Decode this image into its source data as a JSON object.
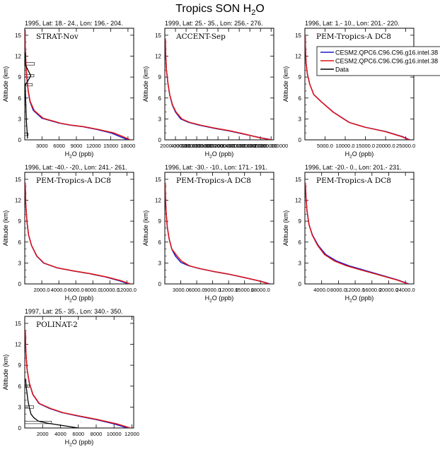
{
  "figure": {
    "title_main": "Tropics SON H",
    "title_sub": "2",
    "title_end": "O",
    "xlabel_main": "H",
    "xlabel_sub": "2",
    "xlabel_end": "O (ppb)",
    "ylabel": "Altitude (km)"
  },
  "legend": {
    "entries": [
      {
        "label": "CESM2.QPC6.C96.C96.g16.intel.38",
        "color": "#1a1acc"
      },
      {
        "label": "CESM2.QPC6.C96.C96.g16.intel.38",
        "color": "#e01414"
      },
      {
        "label": "Data",
        "color": "#000000"
      }
    ]
  },
  "chart_data": [
    {
      "type": "line",
      "header": "1995, Lat: 18.- 24., Lon: 196.- 204.",
      "campaign": "STRAT-Nov",
      "ylim": [
        0,
        16
      ],
      "yticks": [
        0,
        3,
        6,
        9,
        12,
        15
      ],
      "xlim": [
        0,
        19000
      ],
      "xticks": [
        3000,
        6000,
        9000,
        12000,
        15000,
        18000
      ],
      "xtick_labels": [
        "3000",
        "6000",
        "9000",
        "12000",
        "15000",
        "18000"
      ],
      "series": [
        {
          "name": "blue",
          "color": "#1a1acc",
          "x": [
            18000,
            16500,
            15000,
            12500,
            10000,
            8000,
            6000,
            3000,
            1500,
            900,
            600,
            350,
            200,
            120,
            80,
            60
          ],
          "y": [
            0,
            0.5,
            1.0,
            1.5,
            1.9,
            2.1,
            2.4,
            3.1,
            4.2,
            5.5,
            7,
            9,
            11,
            12.5,
            14,
            15.8
          ]
        },
        {
          "name": "red",
          "color": "#e01414",
          "x": [
            18400,
            17000,
            15500,
            12800,
            10200,
            8200,
            6200,
            3200,
            1650,
            950,
            620,
            360,
            205,
            122,
            80,
            60
          ],
          "y": [
            0,
            0.5,
            1.0,
            1.5,
            1.9,
            2.1,
            2.4,
            3.1,
            4.2,
            5.5,
            7,
            9,
            11,
            12.5,
            14,
            15.8
          ]
        },
        {
          "name": "Data",
          "color": "#000000",
          "x": [
            480,
            380,
            300,
            250,
            80,
            1050,
            80,
            100
          ],
          "y": [
            0.2,
            1.5,
            2.5,
            3.5,
            7.8,
            9.2,
            10.8,
            12.5
          ]
        }
      ],
      "error_boxes": [
        {
          "y": 0.8,
          "xmin": 0,
          "xmax": 600
        },
        {
          "y": 7.9,
          "xmin": 0,
          "xmax": 1300
        },
        {
          "y": 9.2,
          "xmin": 0,
          "xmax": 1600
        },
        {
          "y": 10.9,
          "xmin": 0,
          "xmax": 1700
        }
      ]
    },
    {
      "type": "line",
      "header": "1999, Lat: 25.- 35., Lon: 256.- 276.",
      "campaign": "ACCENT-Sep",
      "ylim": [
        0,
        16
      ],
      "yticks": [
        0,
        3,
        6,
        9,
        12,
        15
      ],
      "xlim": [
        0,
        20500
      ],
      "xticks": [
        2000,
        4000,
        6000,
        8000,
        10000,
        12000,
        14000,
        16000,
        18000,
        20000
      ],
      "xtick_labels": [
        "2000.000000",
        "4000.000000",
        "6000.000000",
        "8000.000000",
        "10000.000000",
        "12000.000000",
        "14000.000000",
        "16000.000000",
        "18000.000000",
        "20000.000000"
      ],
      "series": [
        {
          "name": "blue",
          "color": "#1a1acc",
          "x": [
            20200,
            18000,
            15000,
            12000,
            9000,
            6500,
            4500,
            3000,
            2000,
            1400,
            900,
            600,
            300,
            150,
            100
          ],
          "y": [
            0,
            0.3,
            0.8,
            1.3,
            1.7,
            2.1,
            2.5,
            3.0,
            4.0,
            5.0,
            6.5,
            8,
            10,
            12.5,
            14.5
          ]
        },
        {
          "name": "red",
          "color": "#e01414",
          "x": [
            20000,
            17800,
            15200,
            12300,
            9300,
            6800,
            4700,
            3200,
            2100,
            1450,
            920,
            610,
            305,
            150,
            100
          ],
          "y": [
            0,
            0.3,
            0.8,
            1.3,
            1.7,
            2.1,
            2.5,
            3.0,
            4.0,
            5.0,
            6.5,
            8,
            10,
            12.5,
            14.5
          ]
        }
      ]
    },
    {
      "type": "line",
      "header": "1996, Lat: 1.- 10., Lon: 201.- 220.",
      "campaign": "PEM-Tropics-A DC8",
      "ylim": [
        0,
        16
      ],
      "yticks": [
        0,
        3,
        6,
        9,
        12,
        15
      ],
      "xlim": [
        0,
        27000
      ],
      "xticks": [
        5000,
        10000,
        15000,
        20000,
        25000
      ],
      "xtick_labels": [
        "5000.0",
        "10000.0",
        "15000.0",
        "20000.0",
        "25000.0"
      ],
      "series": [
        {
          "name": "blue",
          "color": "#1a1acc",
          "x": [
            26000,
            24000,
            20000,
            15000,
            11000,
            7000,
            4000,
            2200,
            1200,
            600,
            300,
            150,
            80
          ],
          "y": [
            0,
            0.5,
            1.2,
            1.8,
            2.5,
            4.0,
            5.5,
            6.5,
            8,
            9.5,
            11,
            13,
            15
          ]
        },
        {
          "name": "red",
          "color": "#e01414",
          "x": [
            25800,
            23800,
            19800,
            14900,
            10900,
            6950,
            3980,
            2190,
            1195,
            598,
            299,
            150,
            80
          ],
          "y": [
            0,
            0.5,
            1.2,
            1.8,
            2.5,
            4.0,
            5.5,
            6.5,
            8,
            9.5,
            11,
            13,
            15
          ]
        }
      ]
    },
    {
      "type": "line",
      "header": "1996, Lat: -40.- -20., Lon: 241.- 261.",
      "campaign": "PEM-Tropics-A DC8",
      "ylim": [
        0,
        16
      ],
      "yticks": [
        0,
        3,
        6,
        9,
        12,
        15
      ],
      "xlim": [
        0,
        12800
      ],
      "xticks": [
        2000,
        4000,
        6000,
        8000,
        10000,
        12000
      ],
      "xtick_labels": [
        "2000.0",
        "4000.0",
        "6000.0",
        "8000.0",
        "10000.0",
        "12000.0"
      ],
      "series": [
        {
          "name": "blue",
          "color": "#1a1acc",
          "x": [
            12200,
            11000,
            9500,
            7500,
            5500,
            3800,
            2200,
            1400,
            800,
            450,
            250,
            120,
            60
          ],
          "y": [
            0,
            0.5,
            1.0,
            1.5,
            1.9,
            2.3,
            3.0,
            4.0,
            5.5,
            7.0,
            9.0,
            11.5,
            14.5
          ]
        },
        {
          "name": "red",
          "color": "#e01414",
          "x": [
            12400,
            11200,
            9600,
            7600,
            5600,
            3850,
            2250,
            1420,
            810,
            455,
            252,
            120,
            60
          ],
          "y": [
            0,
            0.5,
            1.0,
            1.5,
            1.9,
            2.3,
            3.0,
            4.0,
            5.5,
            7.0,
            9.0,
            11.5,
            14.5
          ]
        }
      ]
    },
    {
      "type": "line",
      "header": "1996, Lat: -30.- -10., Lon: 171.- 191.",
      "campaign": "PEM-Tropics-A DC8",
      "ylim": [
        0,
        16
      ],
      "yticks": [
        0,
        3,
        6,
        9,
        12,
        15
      ],
      "xlim": [
        0,
        20500
      ],
      "xticks": [
        3000,
        6000,
        9000,
        12000,
        15000,
        18000
      ],
      "xtick_labels": [
        "3000.0",
        "6000.0",
        "9000.0",
        "12000.0",
        "15000.0",
        "18000.0"
      ],
      "series": [
        {
          "name": "blue",
          "color": "#1a1acc",
          "x": [
            19800,
            18000,
            15000,
            12000,
            9000,
            6500,
            4500,
            3000,
            2000,
            1300,
            800,
            450,
            220,
            120,
            80
          ],
          "y": [
            0,
            0.4,
            0.9,
            1.4,
            1.8,
            2.2,
            2.6,
            3.1,
            4.0,
            5.0,
            6.5,
            8.2,
            10.5,
            12.5,
            14.5
          ]
        },
        {
          "name": "red",
          "color": "#e01414",
          "x": [
            19600,
            17900,
            15100,
            12100,
            9100,
            6600,
            4600,
            3100,
            2100,
            1320,
            810,
            455,
            222,
            121,
            80
          ],
          "y": [
            0,
            0.4,
            0.9,
            1.4,
            1.8,
            2.2,
            2.6,
            3.3,
            4.2,
            5.0,
            6.5,
            8.2,
            10.5,
            12.5,
            14.5
          ]
        }
      ]
    },
    {
      "type": "line",
      "header": "1996, Lat: -20.- 0., Lon: 201.- 231.",
      "campaign": "PEM-Tropics-A DC8",
      "ylim": [
        0,
        16
      ],
      "yticks": [
        0,
        3,
        6,
        9,
        12,
        15
      ],
      "xlim": [
        0,
        26000
      ],
      "xticks": [
        4000,
        8000,
        12000,
        16000,
        20000,
        24000
      ],
      "xtick_labels": [
        "4000.0",
        "8000.0",
        "12000.0",
        "16000.0",
        "20000.0",
        "24000.0"
      ],
      "series": [
        {
          "name": "blue",
          "color": "#1a1acc",
          "x": [
            24800,
            22000,
            18000,
            14000,
            10500,
            7500,
            5000,
            3200,
            1800,
            1000,
            500,
            250,
            120
          ],
          "y": [
            0,
            0.6,
            1.3,
            2.0,
            2.6,
            3.3,
            4.2,
            5.5,
            7.0,
            8.5,
            10.5,
            12.5,
            14.5
          ]
        },
        {
          "name": "red",
          "color": "#e01414",
          "x": [
            24600,
            21800,
            17600,
            13400,
            9900,
            7000,
            4700,
            3050,
            1750,
            980,
            490,
            245,
            120
          ],
          "y": [
            0,
            0.6,
            1.3,
            2.0,
            2.6,
            3.3,
            4.2,
            5.5,
            7.0,
            8.5,
            10.5,
            12.5,
            14.5
          ]
        }
      ]
    },
    {
      "type": "line",
      "header": "1997, Lat: 25.- 35., Lon: 340.- 350.",
      "campaign": "POLINAT-2",
      "ylim": [
        0,
        16
      ],
      "yticks": [
        0,
        3,
        6,
        9,
        12,
        15
      ],
      "xlim": [
        0,
        12200
      ],
      "xticks": [
        2000,
        4000,
        6000,
        8000,
        10000,
        12000
      ],
      "xtick_labels": [
        "2000",
        "4000",
        "6000",
        "8000",
        "10000",
        "12000"
      ],
      "series": [
        {
          "name": "blue",
          "color": "#1a1acc",
          "x": [
            11500,
            10000,
            8000,
            6000,
            4200,
            2800,
            1600,
            900,
            500,
            250,
            120,
            60
          ],
          "y": [
            0,
            0.6,
            1.2,
            1.7,
            2.2,
            2.8,
            3.5,
            4.8,
            6.5,
            8.5,
            11.0,
            14.0
          ]
        },
        {
          "name": "red",
          "color": "#e01414",
          "x": [
            11800,
            10300,
            8200,
            6200,
            4300,
            2900,
            1650,
            920,
            505,
            252,
            120,
            60
          ],
          "y": [
            0,
            0.6,
            1.2,
            1.7,
            2.2,
            2.8,
            3.5,
            4.8,
            6.5,
            8.5,
            11.0,
            14.0
          ]
        },
        {
          "name": "Data",
          "color": "#000000",
          "x": [
            6000,
            4500,
            2500,
            1500,
            1000,
            700,
            500,
            350,
            250,
            150,
            100
          ],
          "y": [
            0,
            0.3,
            0.7,
            1.0,
            1.5,
            2.0,
            3.0,
            4.0,
            5.0,
            6.0,
            7.0
          ]
        }
      ],
      "error_boxes": [
        {
          "y": 0.8,
          "xmin": 0,
          "xmax": 3000
        },
        {
          "y": 3.0,
          "xmin": 0,
          "xmax": 1000
        },
        {
          "y": 6.0,
          "xmin": 0,
          "xmax": 500
        }
      ]
    }
  ]
}
